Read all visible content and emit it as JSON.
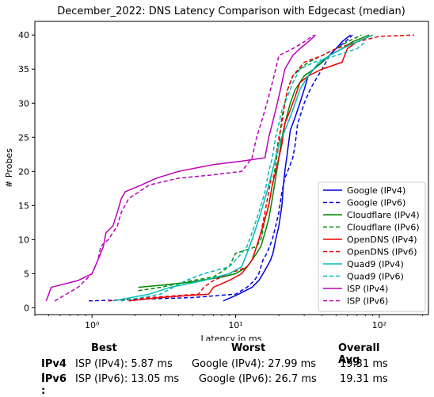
{
  "chart_data": {
    "type": "line",
    "title": "December_2022: DNS Latency Comparison with Edgecast (median)",
    "xlabel": "Latency in ms",
    "ylabel": "# Probes",
    "xscale": "log",
    "xlim": [
      0.4,
      220
    ],
    "ylim": [
      -1,
      42
    ],
    "xticks": [
      {
        "value": 1,
        "label": "10⁰"
      },
      {
        "value": 10,
        "label": "10¹"
      },
      {
        "value": 100,
        "label": "10²"
      }
    ],
    "yticks": [
      0,
      5,
      10,
      15,
      20,
      25,
      30,
      35,
      40
    ],
    "grid": false,
    "legend_position": "lower-right",
    "series": [
      {
        "name": "Google (IPv4)",
        "color": "#0000dd",
        "dash": "solid",
        "points": [
          [
            8.2,
            1
          ],
          [
            10.5,
            2
          ],
          [
            13,
            3
          ],
          [
            14.5,
            4
          ],
          [
            15.5,
            5
          ],
          [
            16.5,
            6
          ],
          [
            17.5,
            7
          ],
          [
            18.2,
            8
          ],
          [
            19,
            10
          ],
          [
            20,
            12
          ],
          [
            21,
            15
          ],
          [
            21.5,
            18
          ],
          [
            22,
            20
          ],
          [
            23,
            23
          ],
          [
            24,
            26
          ],
          [
            26,
            28
          ],
          [
            28,
            30
          ],
          [
            30,
            32
          ],
          [
            32,
            34
          ],
          [
            35,
            35
          ],
          [
            40,
            36
          ],
          [
            45,
            37
          ],
          [
            50,
            38
          ],
          [
            55,
            39
          ],
          [
            63,
            40
          ]
        ]
      },
      {
        "name": "Google (IPv6)",
        "color": "#0000dd",
        "dash": "dashed",
        "points": [
          [
            0.95,
            1
          ],
          [
            5,
            1.5
          ],
          [
            10,
            2
          ],
          [
            12,
            3
          ],
          [
            13.5,
            4
          ],
          [
            14.5,
            5
          ],
          [
            15.5,
            7
          ],
          [
            16.5,
            8
          ],
          [
            18,
            10
          ],
          [
            19,
            12
          ],
          [
            20,
            14
          ],
          [
            21,
            17
          ],
          [
            22,
            19
          ],
          [
            23,
            20
          ],
          [
            24,
            21
          ],
          [
            25,
            22
          ],
          [
            26,
            24
          ],
          [
            27,
            27
          ],
          [
            29,
            29
          ],
          [
            30,
            30
          ],
          [
            33,
            32
          ],
          [
            35,
            33
          ],
          [
            40,
            35
          ],
          [
            45,
            37
          ],
          [
            50,
            38
          ],
          [
            58,
            39
          ],
          [
            65,
            40
          ]
        ]
      },
      {
        "name": "Cloudflare (IPv4)",
        "color": "#008800",
        "dash": "solid",
        "points": [
          [
            2.1,
            3
          ],
          [
            3,
            3.3
          ],
          [
            5,
            3.8
          ],
          [
            8,
            4.5
          ],
          [
            10,
            5
          ],
          [
            12,
            6
          ],
          [
            13,
            7
          ],
          [
            14,
            8
          ],
          [
            15,
            9
          ],
          [
            16,
            11
          ],
          [
            17,
            13
          ],
          [
            18,
            16
          ],
          [
            19,
            19
          ],
          [
            20,
            22
          ],
          [
            21,
            25
          ],
          [
            22,
            27
          ],
          [
            24,
            30
          ],
          [
            26,
            32
          ],
          [
            30,
            34
          ],
          [
            35,
            35
          ],
          [
            45,
            37
          ],
          [
            55,
            38
          ],
          [
            65,
            39
          ],
          [
            85,
            40
          ]
        ]
      },
      {
        "name": "Cloudflare (IPv6)",
        "color": "#008800",
        "dash": "dashed",
        "points": [
          [
            2.1,
            2.5
          ],
          [
            3,
            3
          ],
          [
            5,
            4
          ],
          [
            7,
            4.5
          ],
          [
            9,
            6
          ],
          [
            10,
            8
          ],
          [
            12,
            8.5
          ],
          [
            14,
            9
          ],
          [
            15,
            10
          ],
          [
            16,
            13
          ],
          [
            17,
            15
          ],
          [
            18,
            18
          ],
          [
            19,
            21
          ],
          [
            20,
            24
          ],
          [
            21,
            28
          ],
          [
            22,
            30
          ],
          [
            23,
            32
          ],
          [
            25,
            34
          ],
          [
            28,
            35
          ],
          [
            32,
            36
          ],
          [
            40,
            37
          ],
          [
            50,
            38
          ],
          [
            60,
            39
          ],
          [
            75,
            40
          ]
        ]
      },
      {
        "name": "OpenDNS (IPv4)",
        "color": "#ee0000",
        "dash": "solid",
        "points": [
          [
            1.8,
            1
          ],
          [
            3,
            1.5
          ],
          [
            6.5,
            2
          ],
          [
            7,
            3
          ],
          [
            9,
            4
          ],
          [
            11,
            5
          ],
          [
            12,
            6
          ],
          [
            13,
            7
          ],
          [
            14,
            9
          ],
          [
            15,
            11
          ],
          [
            16,
            13
          ],
          [
            17,
            15
          ],
          [
            18,
            18
          ],
          [
            19,
            20
          ],
          [
            20,
            22
          ],
          [
            21,
            24
          ],
          [
            22,
            27
          ],
          [
            24,
            29
          ],
          [
            26,
            31
          ],
          [
            28,
            33
          ],
          [
            32,
            34
          ],
          [
            40,
            35
          ],
          [
            55,
            36
          ],
          [
            60,
            38
          ],
          [
            70,
            39
          ],
          [
            90,
            40
          ]
        ]
      },
      {
        "name": "OpenDNS (IPv6)",
        "color": "#ee0000",
        "dash": "dashed",
        "points": [
          [
            1.3,
            1
          ],
          [
            2.5,
            1.5
          ],
          [
            5.5,
            2
          ],
          [
            6,
            3
          ],
          [
            7,
            4
          ],
          [
            9,
            5
          ],
          [
            12,
            6
          ],
          [
            13,
            7
          ],
          [
            14,
            9
          ],
          [
            15,
            11
          ],
          [
            16,
            14
          ],
          [
            17,
            17
          ],
          [
            18,
            20
          ],
          [
            19,
            22
          ],
          [
            20,
            25
          ],
          [
            21,
            27
          ],
          [
            22,
            30
          ],
          [
            23,
            32
          ],
          [
            25,
            34
          ],
          [
            30,
            36
          ],
          [
            40,
            37
          ],
          [
            50,
            38
          ],
          [
            70,
            39
          ],
          [
            100,
            39.8
          ],
          [
            175,
            40
          ]
        ]
      },
      {
        "name": "Quad9 (IPv4)",
        "color": "#00bbbb",
        "dash": "solid",
        "points": [
          [
            1.4,
            1
          ],
          [
            2.5,
            2
          ],
          [
            3.5,
            3
          ],
          [
            6,
            4
          ],
          [
            9,
            5
          ],
          [
            11,
            6
          ],
          [
            12,
            8
          ],
          [
            13,
            10
          ],
          [
            14,
            12
          ],
          [
            15,
            14
          ],
          [
            16,
            16
          ],
          [
            17,
            18
          ],
          [
            18,
            20
          ],
          [
            19,
            22
          ],
          [
            20,
            24
          ],
          [
            22,
            26
          ],
          [
            24,
            28
          ],
          [
            26,
            30
          ],
          [
            28,
            32
          ],
          [
            32,
            34
          ],
          [
            38,
            36
          ],
          [
            45,
            37
          ],
          [
            55,
            38
          ],
          [
            70,
            39
          ],
          [
            90,
            40
          ]
        ]
      },
      {
        "name": "Quad9 (IPv6)",
        "color": "#00bbbb",
        "dash": "dashed",
        "points": [
          [
            1.6,
            1
          ],
          [
            3,
            2
          ],
          [
            4.5,
            4
          ],
          [
            6,
            5
          ],
          [
            9,
            6
          ],
          [
            10,
            7
          ],
          [
            11,
            8
          ],
          [
            12,
            9
          ],
          [
            13,
            11
          ],
          [
            14,
            13
          ],
          [
            15,
            15
          ],
          [
            16,
            17
          ],
          [
            17,
            20
          ],
          [
            18,
            22
          ],
          [
            19,
            25
          ],
          [
            20,
            27
          ],
          [
            21,
            29
          ],
          [
            23,
            31
          ],
          [
            25,
            33
          ],
          [
            28,
            35
          ],
          [
            35,
            36
          ],
          [
            50,
            37
          ],
          [
            70,
            38
          ],
          [
            80,
            39
          ]
        ]
      },
      {
        "name": "ISP (IPv4)",
        "color": "#bb00bb",
        "dash": "solid",
        "points": [
          [
            0.48,
            1
          ],
          [
            0.52,
            3
          ],
          [
            0.8,
            4
          ],
          [
            1.0,
            5
          ],
          [
            1.1,
            7
          ],
          [
            1.2,
            9
          ],
          [
            1.25,
            11
          ],
          [
            1.4,
            12
          ],
          [
            1.5,
            14
          ],
          [
            1.6,
            16
          ],
          [
            1.7,
            17
          ],
          [
            2.2,
            18
          ],
          [
            2.8,
            19
          ],
          [
            4,
            20
          ],
          [
            7,
            21
          ],
          [
            11,
            21.5
          ],
          [
            16,
            22
          ],
          [
            17,
            25
          ],
          [
            18,
            27
          ],
          [
            19,
            29
          ],
          [
            20,
            31
          ],
          [
            21,
            33
          ],
          [
            22,
            35
          ],
          [
            25,
            37
          ],
          [
            28,
            38
          ],
          [
            32,
            39
          ],
          [
            36,
            40
          ]
        ]
      },
      {
        "name": "ISP (IPv6)",
        "color": "#bb00bb",
        "dash": "dashed",
        "points": [
          [
            0.55,
            1
          ],
          [
            0.8,
            3
          ],
          [
            1.0,
            5
          ],
          [
            1.1,
            7
          ],
          [
            1.15,
            9
          ],
          [
            1.3,
            10
          ],
          [
            1.5,
            12
          ],
          [
            1.6,
            14
          ],
          [
            1.8,
            16
          ],
          [
            2.5,
            18
          ],
          [
            4,
            19
          ],
          [
            7,
            19.5
          ],
          [
            11,
            20
          ],
          [
            12,
            21
          ],
          [
            13,
            22
          ],
          [
            14,
            25
          ],
          [
            15,
            27
          ],
          [
            16,
            29
          ],
          [
            17,
            31
          ],
          [
            18,
            33
          ],
          [
            19,
            35
          ],
          [
            20,
            37
          ],
          [
            25,
            38
          ],
          [
            30,
            39
          ],
          [
            35,
            40
          ]
        ]
      }
    ]
  },
  "summary": {
    "headers": {
      "best": "Best",
      "worst": "Worst",
      "avg": "Overall Avg"
    },
    "rows": [
      {
        "label": "IPv4 :",
        "best": "ISP (IPv4): 5.87 ms",
        "worst": "Google (IPv4): 27.99 ms",
        "avg": "19.31 ms"
      },
      {
        "label": "IPv6 :",
        "best": "ISP (IPv6): 13.05 ms",
        "worst": "Google (IPv6): 26.7 ms",
        "avg": "19.31 ms"
      }
    ]
  }
}
